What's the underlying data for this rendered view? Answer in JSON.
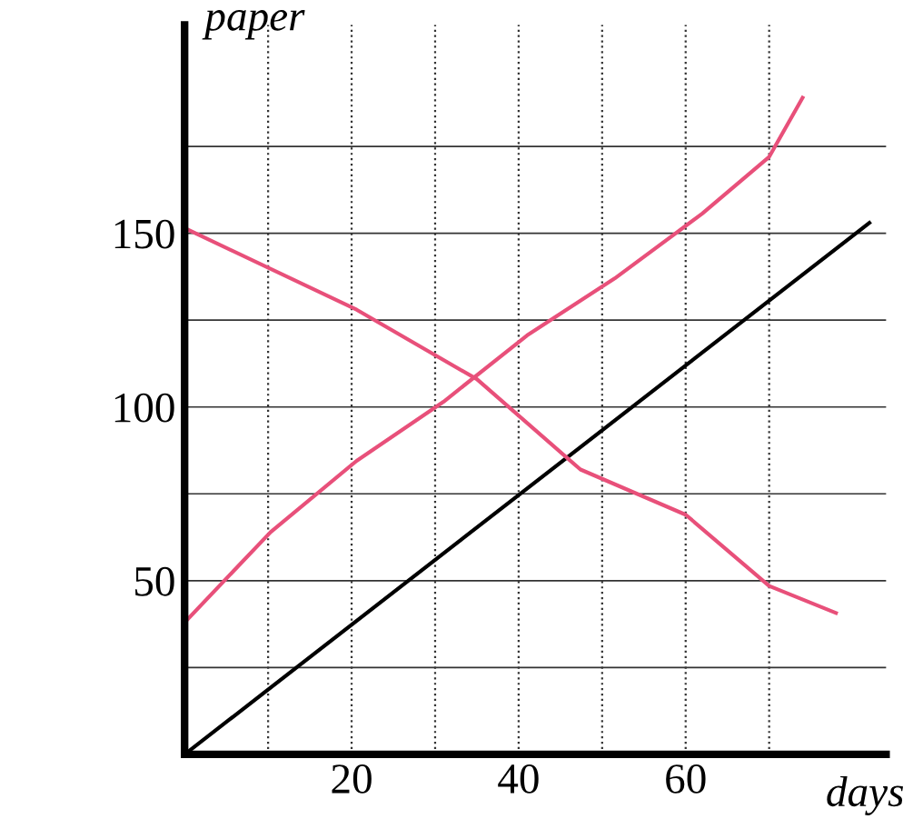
{
  "chart_data": {
    "type": "line",
    "xlabel": "days",
    "ylabel": "paper",
    "xlim": [
      0,
      84
    ],
    "ylim": [
      0,
      210
    ],
    "xticks": [
      {
        "value": 10,
        "label": null
      },
      20,
      {
        "value": 30,
        "label": null
      },
      40,
      {
        "value": 50,
        "label": null
      },
      60,
      {
        "value": 70,
        "label": null
      }
    ],
    "yticks": [
      {
        "value": 25,
        "label": null
      },
      50,
      {
        "value": 75,
        "label": null
      },
      100,
      {
        "value": 125,
        "label": null
      },
      150,
      {
        "value": 175,
        "label": null
      }
    ],
    "grid": true,
    "marker": "none",
    "line_style": "solid",
    "series": [
      {
        "color": "#000000",
        "x": [
          0,
          82
        ],
        "values": [
          0,
          153
        ]
      },
      {
        "color": "#e8507a",
        "x": [
          0,
          20.6,
          35,
          47.4,
          60,
          70,
          78
        ],
        "values": [
          151.5,
          128,
          108,
          82,
          69,
          48.5,
          40.7
        ]
      },
      {
        "color": "#e8507a",
        "x": [
          0,
          10.3,
          20.6,
          31,
          41,
          51.5,
          62,
          70,
          74
        ],
        "values": [
          38,
          64,
          84.5,
          101.5,
          120.6,
          137,
          155.7,
          172,
          189
        ]
      }
    ]
  }
}
